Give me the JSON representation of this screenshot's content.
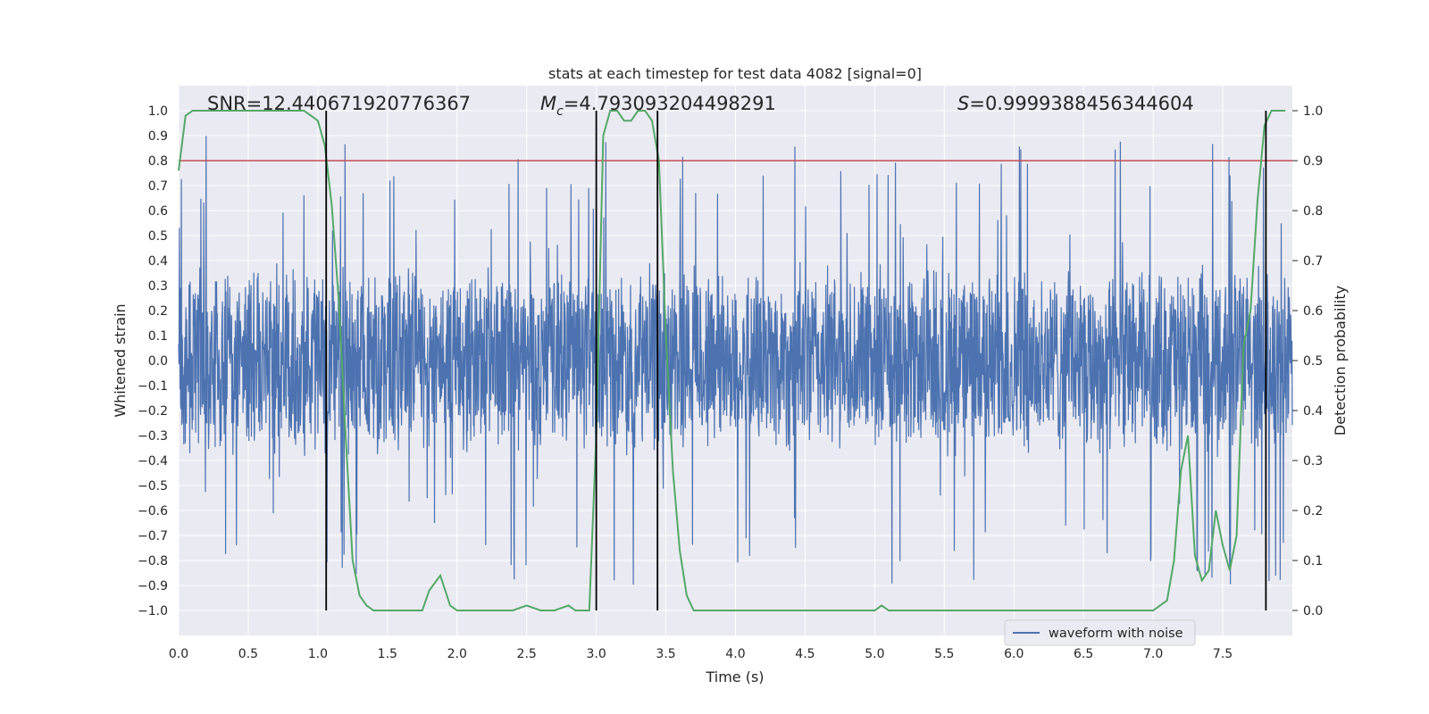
{
  "chart_data": {
    "type": "line",
    "title": "stats at each timestep for test data 4082 [signal=0]",
    "xlabel": "Time (s)",
    "ylabel_left": "Whitened strain",
    "ylabel_right": "Detection probability",
    "xlim": [
      0.0,
      8.0
    ],
    "ylim_left": [
      -1.1,
      1.1
    ],
    "ylim_right": [
      -0.05,
      1.05
    ],
    "xticks": [
      "0.0",
      "0.5",
      "1.0",
      "1.5",
      "2.0",
      "2.5",
      "3.0",
      "3.5",
      "4.0",
      "4.5",
      "5.0",
      "5.5",
      "6.0",
      "6.5",
      "7.0",
      "7.5"
    ],
    "yticks_left": [
      "−1.0",
      "−0.9",
      "−0.8",
      "−0.7",
      "−0.6",
      "−0.5",
      "−0.4",
      "−0.3",
      "−0.2",
      "−0.1",
      "0.0",
      "0.1",
      "0.2",
      "0.3",
      "0.4",
      "0.5",
      "0.6",
      "0.7",
      "0.8",
      "0.9",
      "1.0"
    ],
    "yticks_right": [
      "0.0",
      "0.1",
      "0.2",
      "0.3",
      "0.4",
      "0.5",
      "0.6",
      "0.7",
      "0.8",
      "0.9",
      "1.0"
    ],
    "grid": true,
    "background": "#eaeaf2",
    "annotations": {
      "snr": "SNR=12.440671920776367",
      "mc_symbol": "M",
      "mc_sub": "c",
      "mc_value": "=4.793093204498291",
      "s_symbol": "S",
      "s_value": "=0.9999388456344604"
    },
    "legend": {
      "label": "waveform with noise",
      "position": "lower right"
    },
    "colors": {
      "waveform": "#4c72b0",
      "probability": "#55a868",
      "threshold": "#c44e52",
      "markers": "#000000"
    },
    "threshold": 0.9,
    "vertical_lines": [
      1.06,
      3.0,
      3.44,
      7.81
    ],
    "waveform": {
      "name": "waveform with noise",
      "x_range": [
        0.0,
        8.0
      ],
      "typical_amplitude": 0.4,
      "peak_amplitude": 1.0
    },
    "probability": {
      "x": [
        0.0,
        0.05,
        0.1,
        0.2,
        0.3,
        0.4,
        0.5,
        0.6,
        0.7,
        0.8,
        0.9,
        0.95,
        1.0,
        1.05,
        1.1,
        1.15,
        1.2,
        1.25,
        1.3,
        1.35,
        1.4,
        1.5,
        1.6,
        1.7,
        1.75,
        1.8,
        1.88,
        1.95,
        2.0,
        2.1,
        2.2,
        2.3,
        2.4,
        2.5,
        2.6,
        2.7,
        2.8,
        2.85,
        2.9,
        2.95,
        3.0,
        3.05,
        3.1,
        3.15,
        3.2,
        3.25,
        3.3,
        3.35,
        3.4,
        3.45,
        3.5,
        3.55,
        3.6,
        3.65,
        3.7,
        3.8,
        3.9,
        4.0,
        4.2,
        4.4,
        4.6,
        4.8,
        5.0,
        5.05,
        5.1,
        5.2,
        5.4,
        5.6,
        5.8,
        6.0,
        6.2,
        6.4,
        6.6,
        6.8,
        7.0,
        7.05,
        7.1,
        7.15,
        7.2,
        7.25,
        7.3,
        7.35,
        7.4,
        7.45,
        7.5,
        7.55,
        7.6,
        7.65,
        7.7,
        7.75,
        7.8,
        7.85,
        7.9,
        7.95
      ],
      "y": [
        0.88,
        0.99,
        1.0,
        1.0,
        1.0,
        1.0,
        1.0,
        1.0,
        1.0,
        1.0,
        1.0,
        0.99,
        0.98,
        0.93,
        0.81,
        0.62,
        0.35,
        0.1,
        0.03,
        0.01,
        0.0,
        0.0,
        0.0,
        0.0,
        0.0,
        0.04,
        0.07,
        0.01,
        0.0,
        0.0,
        0.0,
        0.0,
        0.0,
        0.01,
        0.0,
        0.0,
        0.01,
        0.0,
        0.0,
        0.0,
        0.35,
        0.95,
        1.0,
        1.0,
        0.98,
        0.98,
        1.0,
        1.0,
        0.98,
        0.9,
        0.55,
        0.28,
        0.12,
        0.03,
        0.0,
        0.0,
        0.0,
        0.0,
        0.0,
        0.0,
        0.0,
        0.0,
        0.0,
        0.01,
        0.0,
        0.0,
        0.0,
        0.0,
        0.0,
        0.0,
        0.0,
        0.0,
        0.0,
        0.0,
        0.0,
        0.01,
        0.02,
        0.1,
        0.28,
        0.35,
        0.11,
        0.06,
        0.08,
        0.2,
        0.13,
        0.08,
        0.15,
        0.53,
        0.6,
        0.82,
        0.97,
        1.0,
        1.0,
        1.0
      ]
    }
  }
}
